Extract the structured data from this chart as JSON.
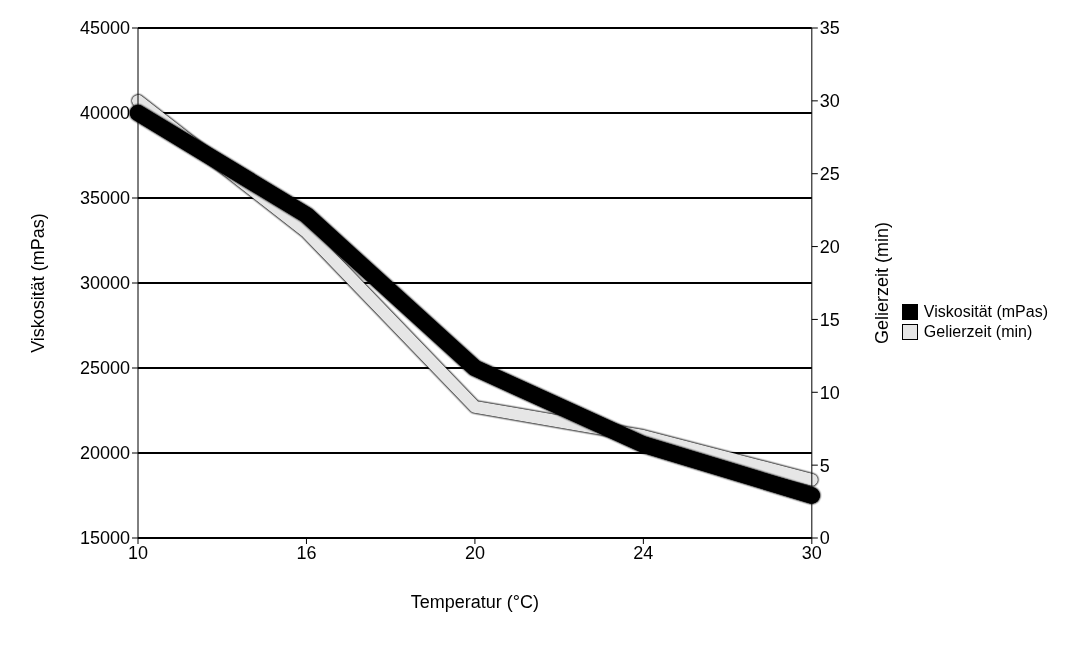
{
  "chart_data": {
    "type": "line",
    "xlabel": "Temperatur (°C)",
    "ylabel": "Viskosität (mPas)",
    "y2label": "Gelierzeit (min)",
    "categories": [
      "10",
      "16",
      "20",
      "24",
      "30"
    ],
    "series": [
      {
        "name": "Viskosität (mPas)",
        "color": "#000000",
        "values": [
          40000,
          34000,
          25000,
          20500,
          17500
        ]
      },
      {
        "name": "Gelierzeit (min)",
        "color": "#e6e6e6",
        "axis": "y2",
        "values": [
          30,
          21,
          9,
          7,
          4
        ]
      }
    ],
    "ylim": [
      15000,
      45000
    ],
    "yticks": [
      15000,
      20000,
      25000,
      30000,
      35000,
      40000,
      45000
    ],
    "y2lim": [
      0,
      35
    ],
    "y2ticks": [
      0,
      5,
      10,
      15,
      20,
      25,
      30,
      35
    ],
    "grid": "y",
    "legend": "right",
    "marker": "none",
    "line_style": "solid"
  }
}
